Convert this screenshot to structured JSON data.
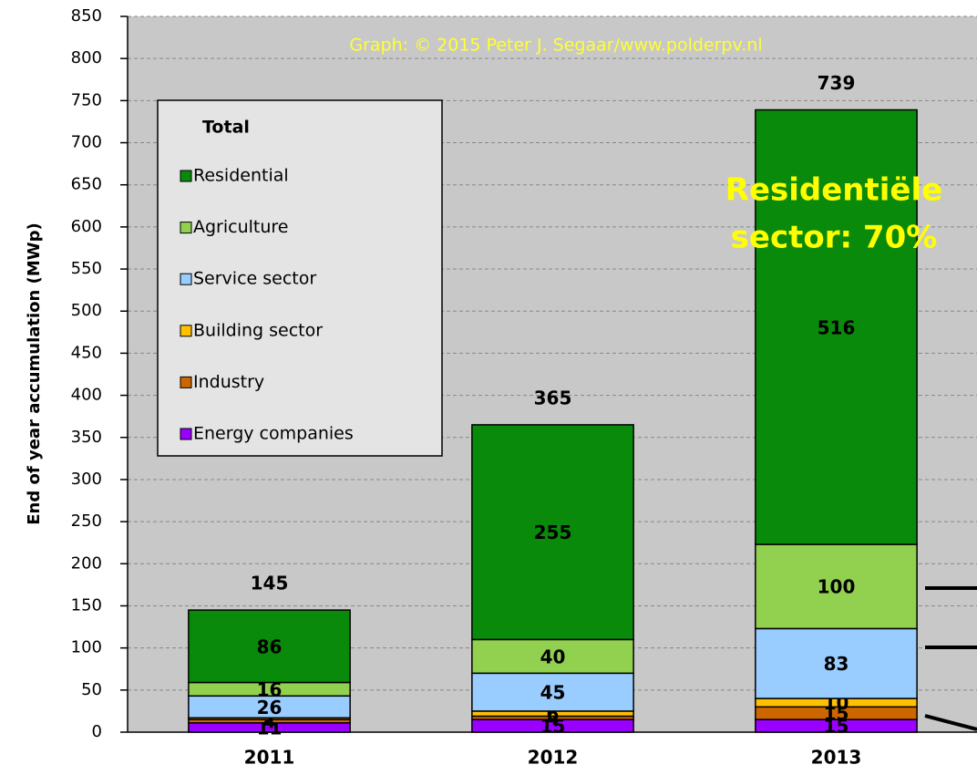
{
  "chart_data": {
    "type": "stacked_bar",
    "credit": "Graph: © 2015 Peter J. Segaar/www.polderpv.nl",
    "annotation": [
      "Residentiële",
      "sector: 70%"
    ],
    "ylabel": "End of year accumulation (MWp)",
    "legend_title": "Total",
    "legend": "upper left",
    "grid": true,
    "categories": [
      "2011",
      "2012",
      "2013"
    ],
    "totals": [
      145,
      365,
      739
    ],
    "series": [
      {
        "name": "Energy companies",
        "color": "#9900ff",
        "values": [
          11,
          15,
          15
        ]
      },
      {
        "name": "Industry",
        "color": "#cc6600",
        "values": [
          4,
          4,
          15
        ]
      },
      {
        "name": "Building sector",
        "color": "#ffc000",
        "values": [
          2,
          6,
          10
        ]
      },
      {
        "name": "Service sector",
        "color": "#99ccff",
        "values": [
          26,
          45,
          83
        ]
      },
      {
        "name": "Agriculture",
        "color": "#92d050",
        "values": [
          16,
          40,
          100
        ]
      },
      {
        "name": "Residential",
        "color": "#0a8a0a",
        "values": [
          86,
          255,
          516
        ]
      }
    ],
    "ylim": [
      0,
      850
    ],
    "yticks": [
      0,
      50,
      100,
      150,
      200,
      250,
      300,
      350,
      400,
      450,
      500,
      550,
      600,
      650,
      700,
      750,
      800,
      850
    ]
  }
}
